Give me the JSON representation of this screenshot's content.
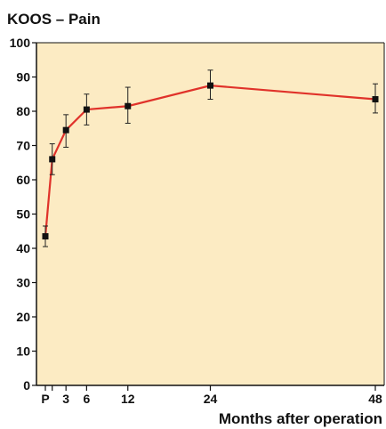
{
  "chart_data": {
    "type": "line",
    "title": "KOOS – Pain",
    "xlabel": "Months after operation",
    "ylabel": "",
    "x_ticks": [
      {
        "label": "P",
        "x": 0
      },
      {
        "label": "",
        "x": 1
      },
      {
        "label": "3",
        "x": 3
      },
      {
        "label": "6",
        "x": 6
      },
      {
        "label": "12",
        "x": 12
      },
      {
        "label": "24",
        "x": 24
      },
      {
        "label": "48",
        "x": 48
      }
    ],
    "ylim": [
      0,
      100
    ],
    "y_ticks": [
      0,
      10,
      20,
      30,
      40,
      50,
      60,
      70,
      80,
      90,
      100
    ],
    "grid": false,
    "series": [
      {
        "color": "#e0322a",
        "points": [
          {
            "x": 0,
            "y": 43.5,
            "err_low": 40.5,
            "err_high": 46.5
          },
          {
            "x": 1,
            "y": 66,
            "err_low": 61.5,
            "err_high": 70.5
          },
          {
            "x": 3,
            "y": 74.5,
            "err_low": 69.5,
            "err_high": 79
          },
          {
            "x": 6,
            "y": 80.5,
            "err_low": 76,
            "err_high": 85
          },
          {
            "x": 12,
            "y": 81.5,
            "err_low": 76.5,
            "err_high": 87
          },
          {
            "x": 24,
            "y": 87.5,
            "err_low": 83.5,
            "err_high": 92
          },
          {
            "x": 48,
            "y": 83.5,
            "err_low": 79.5,
            "err_high": 88
          }
        ]
      }
    ],
    "colors": {
      "plot_background": "#fcebc3",
      "line": "#e0322a",
      "marker": "#111111",
      "axis": "#111111"
    }
  }
}
